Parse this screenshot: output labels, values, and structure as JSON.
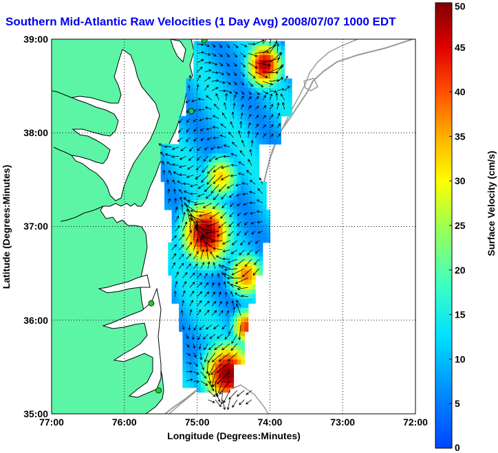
{
  "title": "Southern Mid-Atlantic Raw Velocities (1 Day Avg) 2008/07/07 1000 EDT",
  "xaxis": {
    "label": "Longitude (Degrees:Minutes)",
    "ticks": [
      "77:00",
      "76:00",
      "75:00",
      "74:00",
      "73:00",
      "72:00"
    ]
  },
  "yaxis": {
    "label": "Latitude (Degrees:Minutes)",
    "ticks": [
      "39:00",
      "38:00",
      "37:00",
      "36:00",
      "35:00"
    ]
  },
  "colorbar": {
    "label": "Surface Velocity (cm/s)",
    "ticks": [
      "50",
      "45",
      "40",
      "35",
      "30",
      "25",
      "20",
      "15",
      "10",
      "5",
      "0"
    ],
    "range": [
      0,
      50
    ],
    "colormap": "jet"
  },
  "colors": {
    "title": "#0000ee",
    "land": "#5cf5a6",
    "coast_outline": "#000000",
    "bathymetry": "#9a9a9a",
    "station_marker": "#22cc22",
    "grid": "#000000"
  },
  "map": {
    "lon_range": [
      -77,
      -72
    ],
    "lat_range": [
      35,
      39
    ],
    "grid": "dotted",
    "stations": [
      {
        "lon": -74.9,
        "lat": 38.99
      },
      {
        "lon": -75.08,
        "lat": 38.23
      },
      {
        "lon": -75.63,
        "lat": 36.18
      },
      {
        "lon": -75.53,
        "lat": 35.25
      }
    ]
  }
}
